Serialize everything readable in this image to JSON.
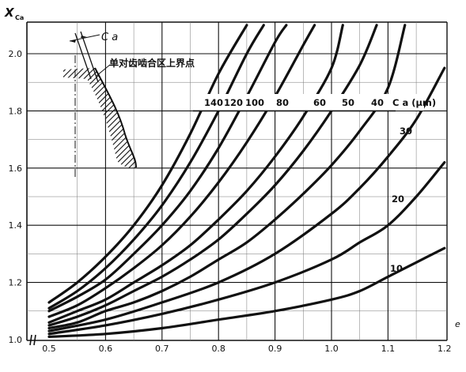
{
  "chart_data": {
    "type": "line",
    "title": "",
    "xlabel": "e",
    "ylabel": "X",
    "ylabel_sub": "Ca",
    "xlim": [
      0.5,
      1.2
    ],
    "ylim": [
      1.0,
      2.1
    ],
    "grid": true,
    "x_ticks": [
      "0.5",
      "0.6",
      "0.7",
      "0.8",
      "0.9",
      "1.0",
      "1.1",
      "1.2"
    ],
    "y_ticks": [
      "1.0",
      "1.2",
      "1.4",
      "1.6",
      "1.8",
      "2.0"
    ],
    "curve_label_unit": "C a (μm)",
    "inset_annotation_symbol": "C a",
    "inset_annotation_text": "单对齿啮合区上界点",
    "series": [
      {
        "name": "140",
        "x": [
          0.5,
          0.55,
          0.6,
          0.65,
          0.7,
          0.75,
          0.8,
          0.85
        ],
        "y": [
          1.13,
          1.2,
          1.29,
          1.4,
          1.54,
          1.72,
          1.93,
          2.1
        ]
      },
      {
        "name": "120",
        "x": [
          0.5,
          0.55,
          0.6,
          0.65,
          0.7,
          0.75,
          0.8,
          0.85,
          0.88
        ],
        "y": [
          1.11,
          1.17,
          1.25,
          1.35,
          1.47,
          1.62,
          1.8,
          2.0,
          2.1
        ]
      },
      {
        "name": "100",
        "x": [
          0.5,
          0.55,
          0.6,
          0.65,
          0.7,
          0.75,
          0.8,
          0.85,
          0.9,
          0.92
        ],
        "y": [
          1.1,
          1.15,
          1.21,
          1.3,
          1.4,
          1.52,
          1.67,
          1.85,
          2.04,
          2.1
        ]
      },
      {
        "name": "80",
        "x": [
          0.5,
          0.55,
          0.6,
          0.65,
          0.7,
          0.75,
          0.8,
          0.85,
          0.9,
          0.95,
          0.97
        ],
        "y": [
          1.08,
          1.12,
          1.18,
          1.25,
          1.33,
          1.43,
          1.55,
          1.69,
          1.85,
          2.03,
          2.1
        ]
      },
      {
        "name": "60",
        "x": [
          0.5,
          0.55,
          0.6,
          0.65,
          0.7,
          0.75,
          0.8,
          0.85,
          0.9,
          0.95,
          1.0,
          1.02
        ],
        "y": [
          1.06,
          1.1,
          1.14,
          1.2,
          1.26,
          1.33,
          1.42,
          1.52,
          1.64,
          1.78,
          1.95,
          2.1
        ]
      },
      {
        "name": "50",
        "x": [
          0.5,
          0.55,
          0.6,
          0.65,
          0.7,
          0.75,
          0.8,
          0.85,
          0.9,
          0.95,
          1.0,
          1.05,
          1.08
        ],
        "y": [
          1.05,
          1.08,
          1.12,
          1.17,
          1.22,
          1.28,
          1.35,
          1.44,
          1.54,
          1.66,
          1.8,
          1.96,
          2.1
        ]
      },
      {
        "name": "40",
        "x": [
          0.5,
          0.55,
          0.6,
          0.65,
          0.7,
          0.75,
          0.8,
          0.85,
          0.9,
          0.95,
          1.0,
          1.05,
          1.1,
          1.13
        ],
        "y": [
          1.04,
          1.06,
          1.1,
          1.13,
          1.17,
          1.22,
          1.28,
          1.34,
          1.42,
          1.51,
          1.61,
          1.73,
          1.88,
          2.1
        ]
      },
      {
        "name": "30",
        "x": [
          0.5,
          0.6,
          0.7,
          0.8,
          0.9,
          1.0,
          1.05,
          1.1,
          1.15,
          1.2
        ],
        "y": [
          1.03,
          1.07,
          1.13,
          1.2,
          1.3,
          1.44,
          1.53,
          1.64,
          1.77,
          1.95
        ]
      },
      {
        "name": "20",
        "x": [
          0.5,
          0.6,
          0.7,
          0.8,
          0.9,
          1.0,
          1.05,
          1.1,
          1.15,
          1.2
        ],
        "y": [
          1.02,
          1.05,
          1.09,
          1.14,
          1.2,
          1.28,
          1.34,
          1.4,
          1.5,
          1.62
        ]
      },
      {
        "name": "10",
        "x": [
          0.5,
          0.6,
          0.7,
          0.8,
          0.9,
          1.0,
          1.05,
          1.1,
          1.15,
          1.2
        ],
        "y": [
          1.01,
          1.02,
          1.04,
          1.07,
          1.1,
          1.14,
          1.17,
          1.22,
          1.27,
          1.32
        ]
      }
    ]
  }
}
